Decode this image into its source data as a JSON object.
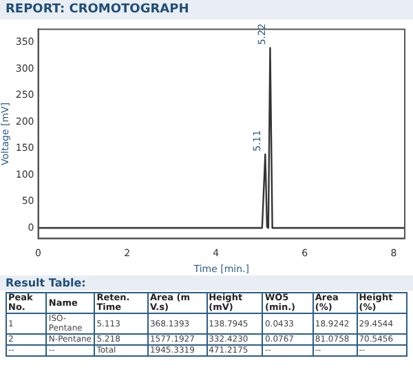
{
  "chart_data": {
    "type": "line",
    "title": "REPORT: CROMOTOGRAPH",
    "xlabel": "Time [min.]",
    "ylabel": "Voltage [mV]",
    "x": [
      0,
      5.04,
      5.11,
      5.15,
      5.18,
      5.22,
      5.27,
      8.25
    ],
    "series": [
      {
        "color": "#333333",
        "values": [
          0,
          0,
          139,
          2,
          0,
          340,
          0,
          0
        ]
      }
    ],
    "xlim": [
      0,
      8.25
    ],
    "xticks": [
      0,
      2,
      4,
      6,
      8
    ],
    "ylim": [
      -20,
      375
    ],
    "yticks": [
      0,
      50,
      100,
      150,
      200,
      250,
      300,
      350
    ],
    "grid": false,
    "legend": false,
    "marker": "none",
    "line_style": "solid",
    "annotations": [
      {
        "text": "5.11",
        "x": 5.11,
        "y": 139
      },
      {
        "text": "5.22",
        "x": 5.22,
        "y": 340
      },
      "Result Table:",
      "Peak No.",
      "Name",
      "Reten. Time",
      "Area (m V.s)",
      "Height (mV)",
      "WO5 (min.)",
      "Area (%)",
      "Height (%)",
      "1",
      "ISO-Pentane",
      "5.113",
      "368.1393",
      "138.7945",
      "0.0433",
      "18.9242",
      "29.4544",
      "2",
      "N-Pentane",
      "5.218",
      "1577.1927",
      "332.4230",
      "0.0767",
      "81.0758",
      "70.5456",
      "--",
      "--",
      "Total",
      "1945.3319",
      "471.2175",
      "--",
      "--",
      "--"
    ]
  }
}
